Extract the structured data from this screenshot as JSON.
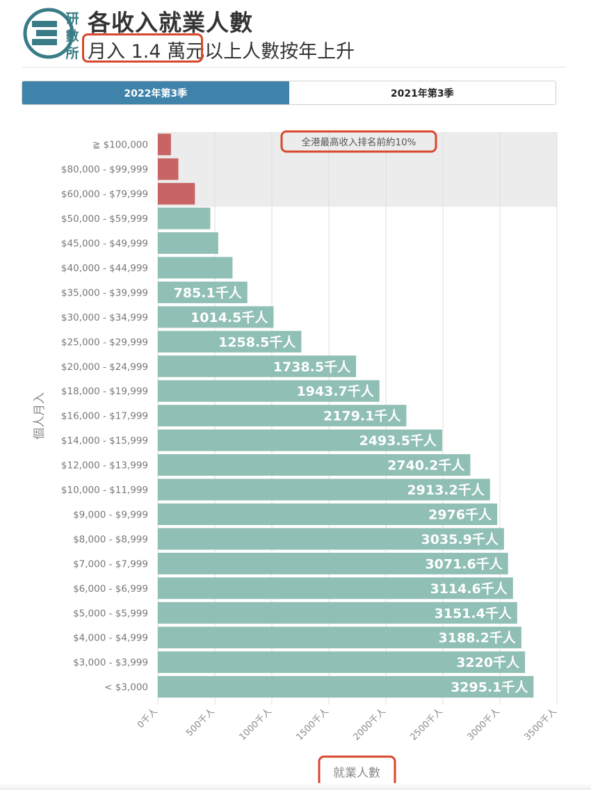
{
  "header": {
    "logo_text": [
      "研",
      "數",
      "所"
    ],
    "title": "各收入就業人數",
    "subtitle": "月入 1.4 萬元以上人數按年上升"
  },
  "tabs": [
    {
      "label": "2022年第3季",
      "active": true
    },
    {
      "label": "2021年第3季",
      "active": false
    }
  ],
  "colors": {
    "teal": "#8fbfb5",
    "red": "#c86464",
    "tab_active": "#3f82aa",
    "highlight": "#d9462a",
    "band": "#ececec"
  },
  "chart_data": {
    "type": "bar",
    "orientation": "horizontal",
    "xlabel": "就業人數",
    "ylabel": "個人月入",
    "xlim": [
      0,
      3500
    ],
    "x_ticks": [
      "0千人",
      "500千人",
      "1000千人",
      "1500千人",
      "2000千人",
      "2500千人",
      "3000千人",
      "3500千人"
    ],
    "x_tick_values": [
      0,
      500,
      1000,
      1500,
      2000,
      2500,
      3000,
      3500
    ],
    "grid": true,
    "annotation": "全港最高收入排名前約10%",
    "categories": [
      "≧ $100,000",
      "$80,000 - $99,999",
      "$60,000 - $79,999",
      "$50,000 - $59,999",
      "$45,000 - $49,999",
      "$40,000 - $44,999",
      "$35,000 - $39,999",
      "$30,000 - $34,999",
      "$25,000 - $29,999",
      "$20,000 - $24,999",
      "$18,000 - $19,999",
      "$16,000 - $17,999",
      "$14,000 - $15,999",
      "$12,000 - $13,999",
      "$10,000 - $11,999",
      "$9,000 - $9,999",
      "$8,000 - $8,999",
      "$7,000 - $7,999",
      "$6,000 - $6,999",
      "$5,000 - $5,999",
      "$4,000 - $4,999",
      "$3,000 - $3,999",
      "< $3,000"
    ],
    "values": [
      115,
      180,
      325,
      460,
      530,
      655,
      785.1,
      1014.5,
      1258.5,
      1738.5,
      1943.7,
      2179.1,
      2493.5,
      2740.2,
      2913.2,
      2976,
      3035.9,
      3071.6,
      3114.6,
      3151.4,
      3188.2,
      3220,
      3295.1
    ],
    "labels": [
      "",
      "",
      "",
      "",
      "",
      "",
      "785.1千人",
      "1014.5千人",
      "1258.5千人",
      "1738.5千人",
      "1943.7千人",
      "2179.1千人",
      "2493.5千人",
      "2740.2千人",
      "2913.2千人",
      "2976千人",
      "3035.9千人",
      "3071.6千人",
      "3114.6千人",
      "3151.4千人",
      "3188.2千人",
      "3220千人",
      "3295.1千人"
    ],
    "highlighted_categories": 3
  }
}
